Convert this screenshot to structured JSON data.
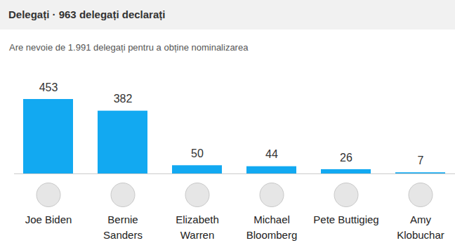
{
  "chart_data": {
    "type": "bar",
    "title": "Delegați · 963 delegați declarați",
    "subtitle": "Are nevoie de 1.991 delegați pentru a obține nominalizarea",
    "categories": [
      "Joe Biden",
      "Bernie\nSanders",
      "Elizabeth\nWarren",
      "Michael\nBloomberg",
      "Pete Buttigieg",
      "Amy\nKlobuchar"
    ],
    "values": [
      453,
      382,
      50,
      44,
      26,
      7
    ],
    "color": "#12a9f1",
    "ylim": [
      0,
      453
    ],
    "data_labels": true,
    "tick_labels": "x",
    "grid": false
  }
}
